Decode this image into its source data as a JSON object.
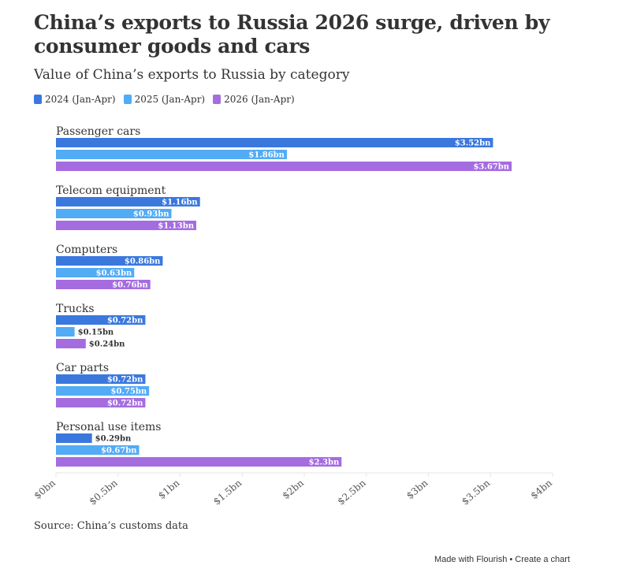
{
  "header": {
    "title": "China’s exports to Russia 2026 surge, driven by consumer goods and cars",
    "subtitle": "Value of China’s exports to Russia by category"
  },
  "colors": {
    "2024": "#3a78de",
    "2025": "#52abf5",
    "2026": "#a56ce0",
    "grid": "#e6e6e6",
    "axis": "#555555"
  },
  "chart_data": {
    "type": "bar",
    "orientation": "horizontal",
    "categories": [
      "Passenger cars",
      "Telecom equipment",
      "Computers",
      "Trucks",
      "Car parts",
      "Personal use items"
    ],
    "series": [
      {
        "name": "2024 (Jan-Apr)",
        "values": [
          3.52,
          1.16,
          0.86,
          0.72,
          0.72,
          0.29
        ],
        "labels": [
          "$3.52bn",
          "$1.16bn",
          "$0.86bn",
          "$0.72bn",
          "$0.72bn",
          "$0.29bn"
        ]
      },
      {
        "name": "2025 (Jan-Apr)",
        "values": [
          1.86,
          0.93,
          0.63,
          0.15,
          0.75,
          0.67
        ],
        "labels": [
          "$1.86bn",
          "$0.93bn",
          "$0.63bn",
          "$0.15bn",
          "$0.75bn",
          "$0.67bn"
        ]
      },
      {
        "name": "2026 (Jan-Apr)",
        "values": [
          3.67,
          1.13,
          0.76,
          0.24,
          0.72,
          2.3
        ],
        "labels": [
          "$3.67bn",
          "$1.13bn",
          "$0.76bn",
          "$0.24bn",
          "$0.72bn",
          "$2.3bn"
        ]
      }
    ],
    "xlim": [
      0,
      4
    ],
    "x_ticks": [
      0,
      0.5,
      1,
      1.5,
      2,
      2.5,
      3,
      3.5,
      4
    ],
    "x_tick_labels": [
      "$0bn",
      "$0.5bn",
      "$1bn",
      "$1.5bn",
      "$2bn",
      "$2.5bn",
      "$3bn",
      "$3.5bn",
      "$4bn"
    ],
    "legend_position": "top-left",
    "grid": false
  },
  "source": "Source: China’s customs data",
  "footer": {
    "made_with": "Made with Flourish",
    "separator": " • ",
    "create": "Create a chart"
  }
}
